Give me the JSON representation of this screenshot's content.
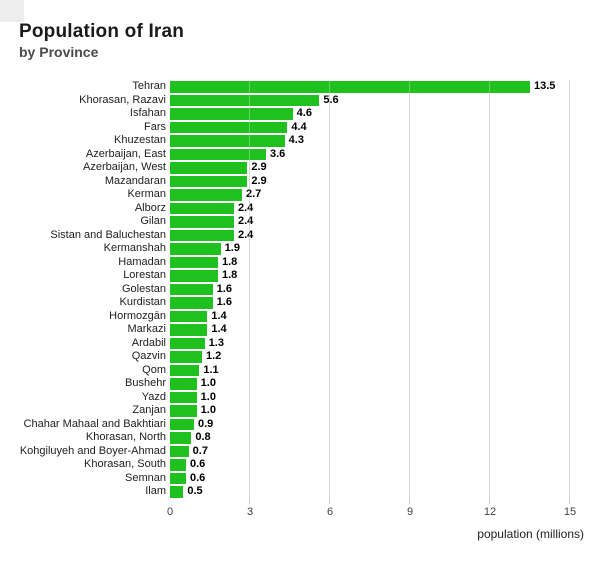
{
  "chart_data": {
    "type": "bar",
    "orientation": "horizontal",
    "title": "Population of Iran",
    "subtitle": "by Province",
    "xlabel": "population (millions)",
    "xlim": [
      0,
      15
    ],
    "xticks": [
      0,
      3,
      6,
      9,
      12,
      15
    ],
    "gridline_values": [
      3,
      6,
      9,
      12,
      15
    ],
    "grid": true,
    "legend": false,
    "value_label_decimals": 1,
    "categories": [
      "Tehran",
      "Khorasan, Razavi",
      "Isfahan",
      "Fars",
      "Khuzestan",
      "Azerbaijan, East",
      "Azerbaijan, West",
      "Mazandaran",
      "Kerman",
      "Alborz",
      "Gilan",
      "Sistan and Baluchestan",
      "Kermanshah",
      "Hamadan",
      "Lorestan",
      "Golestan",
      "Kurdistan",
      "Hormozgān",
      "Markazi",
      "Ardabil",
      "Qazvin",
      "Qom",
      "Bushehr",
      "Yazd",
      "Zanjan",
      "Chahar Mahaal and Bakhtiari",
      "Khorasan, North",
      "Kohgiluyeh and Boyer-Ahmad",
      "Khorasan, South",
      "Semnan",
      "Ilam"
    ],
    "values": [
      13.5,
      5.6,
      4.6,
      4.4,
      4.3,
      3.6,
      2.9,
      2.9,
      2.7,
      2.4,
      2.4,
      2.4,
      1.9,
      1.8,
      1.8,
      1.6,
      1.6,
      1.4,
      1.4,
      1.3,
      1.2,
      1.1,
      1.0,
      1.0,
      1.0,
      0.9,
      0.8,
      0.7,
      0.6,
      0.6,
      0.5
    ]
  },
  "colors": {
    "bar": "#1fc11f",
    "gridline": "#c9c9c9",
    "title_text": "#1a1a1a",
    "subtitle_text": "#4a4a4a",
    "category_text": "#202122",
    "value_text": "#000000",
    "tick_text": "#404040",
    "background": "#ffffff"
  }
}
